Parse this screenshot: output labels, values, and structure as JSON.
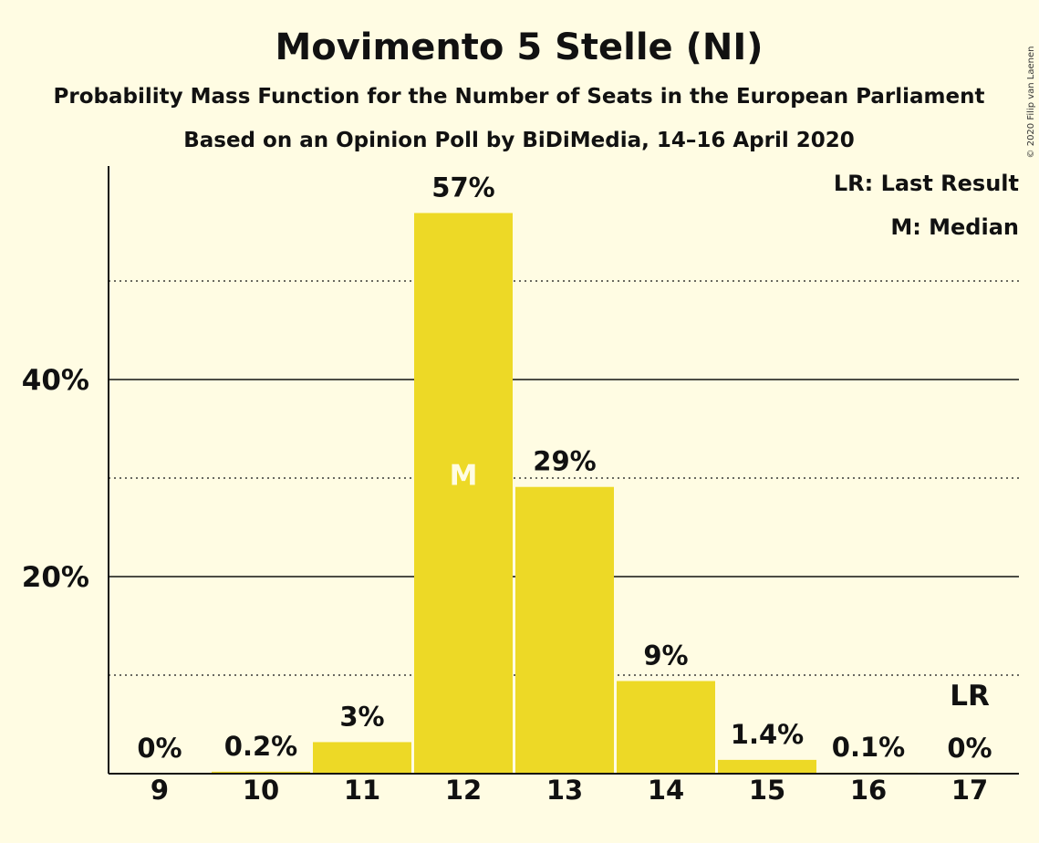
{
  "chart_data": {
    "type": "bar",
    "title": "Movimento 5 Stelle (NI)",
    "subtitle_lines": [
      "Probability Mass Function for the Number of Seats in the European Parliament",
      "Based on an Opinion Poll by BiDiMedia, 14–16 April 2020"
    ],
    "categories": [
      "9",
      "10",
      "11",
      "12",
      "13",
      "14",
      "15",
      "16",
      "17"
    ],
    "values": [
      0,
      0.2,
      3.2,
      56.9,
      29.1,
      9.4,
      1.4,
      0.1,
      0
    ],
    "value_labels": [
      "0%",
      "0.2%",
      "3%",
      "57%",
      "29%",
      "9%",
      "1.4%",
      "0.1%",
      "0%"
    ],
    "ylim": [
      0,
      62
    ],
    "y_ticks": [
      {
        "value": 20,
        "label": "20%"
      },
      {
        "value": 40,
        "label": "40%"
      }
    ],
    "minor_gridlines": [
      10,
      30,
      50
    ],
    "median_category": "12",
    "median_marker": "M",
    "last_result_category": "17",
    "last_result_marker": "LR",
    "legend_position": "top-right",
    "legend": [
      "LR: Last Result",
      "M: Median"
    ],
    "bar_color": "#EDD926",
    "copyright": "© 2020 Filip van Laenen"
  }
}
